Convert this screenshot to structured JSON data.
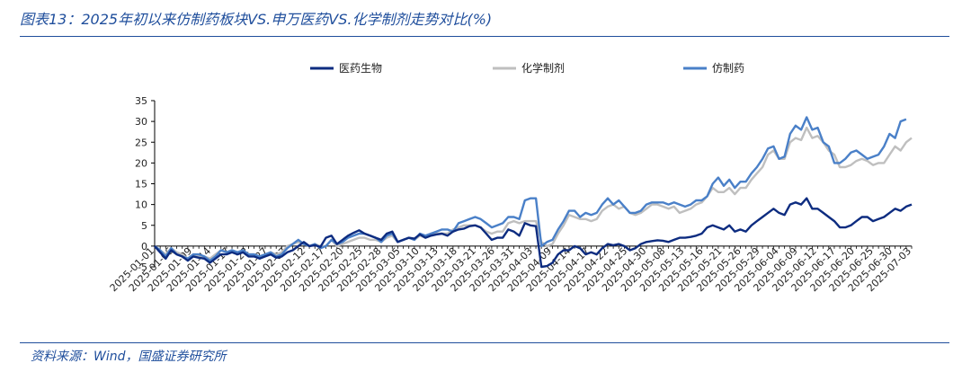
{
  "title": "图表13：2025年初以来仿制药板块VS.申万医药VS.化学制剂走势对比(%)",
  "source": "资料来源：Wind，国盛证券研究所",
  "chart_data": {
    "type": "line",
    "title": "",
    "xlabel": "",
    "ylabel": "",
    "ylim": [
      -5,
      35
    ],
    "yticks": [
      -5,
      0,
      5,
      10,
      15,
      20,
      25,
      30,
      35
    ],
    "grid": false,
    "legend_position": "top-center",
    "x_tick_labels": [
      "2025-01-01",
      "2025-01-06",
      "2025-01-09",
      "2025-01-14",
      "2025-01-17",
      "2025-01-22",
      "2025-01-27",
      "2025-02-07",
      "2025-02-12",
      "2025-02-17",
      "2025-02-20",
      "2025-02-25",
      "2025-02-28",
      "2025-03-05",
      "2025-03-10",
      "2025-03-13",
      "2025-03-18",
      "2025-03-21",
      "2025-03-26",
      "2025-03-31",
      "2025-04-03",
      "2025-04-09",
      "2025-04-14",
      "2025-04-17",
      "2025-04-22",
      "2025-04-25",
      "2025-04-30",
      "2025-05-08",
      "2025-05-13",
      "2025-05-16",
      "2025-05-21",
      "2025-05-26",
      "2025-05-29",
      "2025-06-04",
      "2025-06-09",
      "2025-06-12",
      "2025-06-17",
      "2025-06-20",
      "2025-06-25",
      "2025-06-30",
      "2025-07-03"
    ],
    "series": [
      {
        "name": "医药生物",
        "color": "#0d2c80",
        "values": [
          0,
          -1.5,
          -3,
          -1,
          -2,
          -2.5,
          -3.5,
          -2.5,
          -2.8,
          -3,
          -4,
          -3,
          -2,
          -2,
          -1.5,
          -2,
          -1.5,
          -2.5,
          -2.5,
          -3,
          -2.5,
          -2,
          -2.8,
          -2.5,
          -1.5,
          -1,
          0,
          1,
          0,
          0.2,
          -0.2,
          2,
          2.5,
          0.5,
          1.5,
          2.5,
          3.2,
          3.8,
          3,
          2.5,
          2,
          1.5,
          3,
          3.5,
          1,
          1.5,
          2,
          1.8,
          2.8,
          2,
          2.5,
          2.8,
          3,
          2.5,
          3.5,
          4,
          4.2,
          4.8,
          5,
          4.5,
          3,
          1.5,
          2,
          2,
          4,
          3.5,
          2.5,
          5.5,
          5,
          4.8,
          -5,
          -4.8,
          -4,
          -2,
          -1,
          -1,
          0,
          -0.5,
          -2,
          -1.5,
          -2,
          -0.5,
          0.5,
          0.2,
          0.5,
          0,
          -1,
          -0.5,
          0.5,
          1,
          1.2,
          1.4,
          1.3,
          1,
          1.5,
          2,
          2,
          2.2,
          2.5,
          3,
          4.5,
          5,
          4.5,
          4,
          5,
          3.5,
          4,
          3.5,
          5,
          6,
          7,
          8,
          9,
          8,
          7.5,
          10,
          10.5,
          10,
          11.5,
          9,
          9,
          8,
          7,
          6,
          4.5,
          4.5,
          5,
          6,
          7,
          7,
          6,
          6.5,
          7,
          8,
          9,
          8.5,
          9.5,
          10
        ]
      },
      {
        "name": "化学制剂",
        "color": "#bfbfbf",
        "values": [
          0,
          -1,
          -2,
          -0.5,
          -1.5,
          -2,
          -3,
          -2,
          -2.5,
          -2.5,
          -3,
          -2,
          -1,
          -1.5,
          -1,
          -1.5,
          -1,
          -2,
          -2,
          -2.5,
          -2,
          -1.5,
          -2,
          -1.5,
          0,
          0.5,
          1,
          0.5,
          0,
          0.5,
          0,
          0,
          1.5,
          0,
          0.5,
          1,
          1.5,
          2,
          2,
          1.5,
          1.5,
          1,
          2,
          2.5,
          1,
          1.5,
          2,
          1.5,
          2.5,
          2,
          3,
          3,
          3,
          3,
          4,
          4.5,
          5,
          5,
          5,
          4.5,
          3.5,
          3,
          3.5,
          3.5,
          5.5,
          6,
          5.5,
          6,
          6,
          6,
          1,
          0,
          0.5,
          3,
          5,
          7.5,
          7,
          6.5,
          6.5,
          6,
          6.5,
          8.5,
          9.5,
          10,
          9,
          9.5,
          8,
          7.5,
          8,
          9,
          10,
          10,
          9.5,
          9,
          9.5,
          8,
          8.5,
          9,
          10,
          10.5,
          12,
          14,
          13,
          13,
          14,
          12.5,
          14,
          14,
          16,
          17.5,
          19,
          22,
          23,
          21,
          21,
          25,
          26,
          25.5,
          28.5,
          26,
          26.5,
          25,
          23,
          22,
          19,
          19,
          19.5,
          20.5,
          21,
          20.5,
          19.5,
          20,
          20,
          22,
          24,
          23,
          25,
          26
        ]
      },
      {
        "name": "仿制药",
        "color": "#4a80c8",
        "values": [
          0,
          -1,
          -2.5,
          -0.5,
          -2,
          -2.5,
          -3,
          -2,
          -2,
          -2.5,
          -3.5,
          -2.5,
          -1,
          -1.5,
          -1,
          -1.5,
          -1,
          -2,
          -2,
          -2.5,
          -2,
          -1.5,
          -2.5,
          -2,
          -0.5,
          0.5,
          1.5,
          0.5,
          0,
          0.5,
          -0.5,
          0,
          1.5,
          0.5,
          1,
          2,
          2.5,
          3,
          3,
          2.5,
          2,
          1,
          2.5,
          3,
          1,
          1.5,
          2,
          1.5,
          3,
          2.5,
          3,
          3.5,
          4,
          4,
          3.5,
          5.5,
          6,
          6.5,
          7,
          6.5,
          5.5,
          4.5,
          5,
          5.5,
          7,
          7,
          6.5,
          11,
          11.5,
          11.5,
          0,
          1,
          1.5,
          4,
          6,
          8.5,
          8.5,
          7,
          8,
          7.5,
          8,
          10,
          11.5,
          10,
          11,
          9.5,
          8,
          8,
          8.5,
          10,
          10.5,
          10.5,
          10.5,
          10,
          10.5,
          10,
          9.5,
          10,
          11,
          11,
          12,
          15,
          16.5,
          14.5,
          16,
          14,
          15.5,
          15.5,
          17.5,
          19,
          21,
          23.5,
          24,
          21,
          21.5,
          27,
          29,
          28,
          31,
          28,
          28.5,
          25,
          24,
          20,
          20,
          21,
          22.5,
          23,
          22,
          21,
          21.5,
          22,
          24,
          27,
          26,
          30,
          30.5
        ]
      }
    ]
  }
}
